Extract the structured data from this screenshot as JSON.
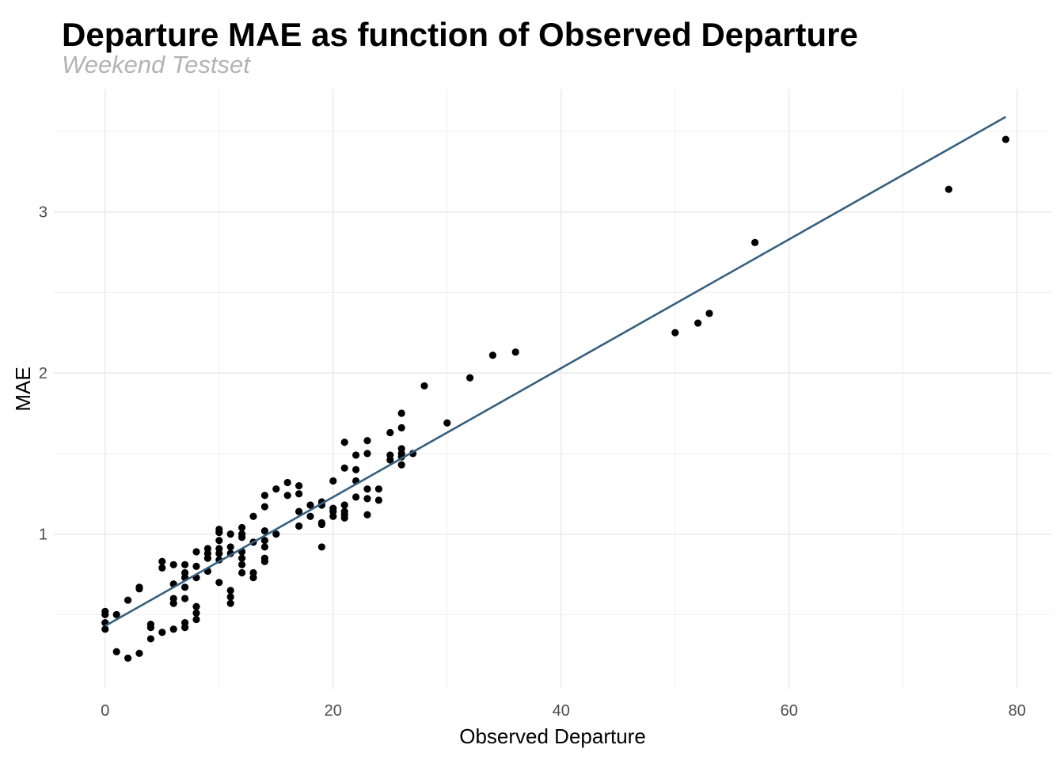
{
  "chart_data": {
    "type": "scatter",
    "title": "Departure MAE as function of Observed Departure",
    "subtitle": "Weekend Testset",
    "xlabel": "Observed Departure",
    "ylabel": "MAE",
    "xlim": [
      -4.5,
      83
    ],
    "ylim": [
      0.04,
      3.76
    ],
    "x_ticks": [
      0,
      20,
      40,
      60,
      80
    ],
    "y_ticks": [
      1,
      2,
      3
    ],
    "x_tick_labels": [
      "0",
      "20",
      "40",
      "60",
      "80"
    ],
    "y_tick_labels": [
      "1",
      "2",
      "3"
    ],
    "grid": true,
    "point_color": "#000000",
    "line_color": "#35607f",
    "trend_line": {
      "x": [
        0,
        79
      ],
      "y": [
        0.43,
        3.59
      ]
    },
    "points": [
      [
        0,
        0.52
      ],
      [
        0,
        0.5
      ],
      [
        0,
        0.45
      ],
      [
        0,
        0.41
      ],
      [
        1,
        0.5
      ],
      [
        1,
        0.27
      ],
      [
        2,
        0.59
      ],
      [
        2,
        0.23
      ],
      [
        3,
        0.67
      ],
      [
        3,
        0.66
      ],
      [
        3,
        0.26
      ],
      [
        4,
        0.44
      ],
      [
        4,
        0.42
      ],
      [
        4,
        0.35
      ],
      [
        5,
        0.83
      ],
      [
        5,
        0.79
      ],
      [
        5,
        0.39
      ],
      [
        6,
        0.81
      ],
      [
        6,
        0.69
      ],
      [
        6,
        0.6
      ],
      [
        6,
        0.57
      ],
      [
        6,
        0.41
      ],
      [
        7,
        0.81
      ],
      [
        7,
        0.76
      ],
      [
        7,
        0.73
      ],
      [
        7,
        0.67
      ],
      [
        7,
        0.6
      ],
      [
        7,
        0.45
      ],
      [
        7,
        0.42
      ],
      [
        8,
        0.89
      ],
      [
        8,
        0.8
      ],
      [
        8,
        0.73
      ],
      [
        8,
        0.55
      ],
      [
        8,
        0.51
      ],
      [
        8,
        0.47
      ],
      [
        9,
        0.91
      ],
      [
        9,
        0.88
      ],
      [
        9,
        0.85
      ],
      [
        9,
        0.77
      ],
      [
        10,
        1.03
      ],
      [
        10,
        1.01
      ],
      [
        10,
        0.96
      ],
      [
        10,
        0.91
      ],
      [
        10,
        0.88
      ],
      [
        10,
        0.84
      ],
      [
        10,
        0.7
      ],
      [
        11,
        1.0
      ],
      [
        11,
        0.92
      ],
      [
        11,
        0.88
      ],
      [
        11,
        0.65
      ],
      [
        11,
        0.61
      ],
      [
        11,
        0.57
      ],
      [
        12,
        1.04
      ],
      [
        12,
        1.0
      ],
      [
        12,
        0.98
      ],
      [
        12,
        0.89
      ],
      [
        12,
        0.85
      ],
      [
        12,
        0.81
      ],
      [
        12,
        0.76
      ],
      [
        13,
        1.11
      ],
      [
        13,
        0.95
      ],
      [
        13,
        0.76
      ],
      [
        13,
        0.73
      ],
      [
        14,
        1.24
      ],
      [
        14,
        1.17
      ],
      [
        14,
        1.02
      ],
      [
        14,
        0.96
      ],
      [
        14,
        0.92
      ],
      [
        14,
        0.85
      ],
      [
        14,
        0.83
      ],
      [
        15,
        1.28
      ],
      [
        15,
        1.0
      ],
      [
        16,
        1.32
      ],
      [
        16,
        1.24
      ],
      [
        17,
        1.3
      ],
      [
        17,
        1.25
      ],
      [
        17,
        1.14
      ],
      [
        17,
        1.05
      ],
      [
        18,
        1.18
      ],
      [
        18,
        1.11
      ],
      [
        19,
        1.2
      ],
      [
        19,
        1.18
      ],
      [
        19,
        1.07
      ],
      [
        19,
        1.06
      ],
      [
        19,
        0.92
      ],
      [
        20,
        1.33
      ],
      [
        20,
        1.16
      ],
      [
        20,
        1.14
      ],
      [
        20,
        1.11
      ],
      [
        21,
        1.57
      ],
      [
        21,
        1.41
      ],
      [
        21,
        1.18
      ],
      [
        21,
        1.14
      ],
      [
        21,
        1.12
      ],
      [
        21,
        1.1
      ],
      [
        22,
        1.49
      ],
      [
        22,
        1.4
      ],
      [
        22,
        1.33
      ],
      [
        22,
        1.23
      ],
      [
        23,
        1.58
      ],
      [
        23,
        1.5
      ],
      [
        23,
        1.28
      ],
      [
        23,
        1.22
      ],
      [
        23,
        1.12
      ],
      [
        24,
        1.28
      ],
      [
        24,
        1.21
      ],
      [
        25,
        1.63
      ],
      [
        25,
        1.49
      ],
      [
        25,
        1.46
      ],
      [
        26,
        1.75
      ],
      [
        26,
        1.66
      ],
      [
        26,
        1.53
      ],
      [
        26,
        1.5
      ],
      [
        26,
        1.48
      ],
      [
        26,
        1.43
      ],
      [
        27,
        1.5
      ],
      [
        28,
        1.92
      ],
      [
        30,
        1.69
      ],
      [
        32,
        1.97
      ],
      [
        34,
        2.11
      ],
      [
        36,
        2.13
      ],
      [
        50,
        2.25
      ],
      [
        52,
        2.31
      ],
      [
        53,
        2.37
      ],
      [
        57,
        2.81
      ],
      [
        74,
        3.14
      ],
      [
        79,
        3.45
      ]
    ]
  }
}
